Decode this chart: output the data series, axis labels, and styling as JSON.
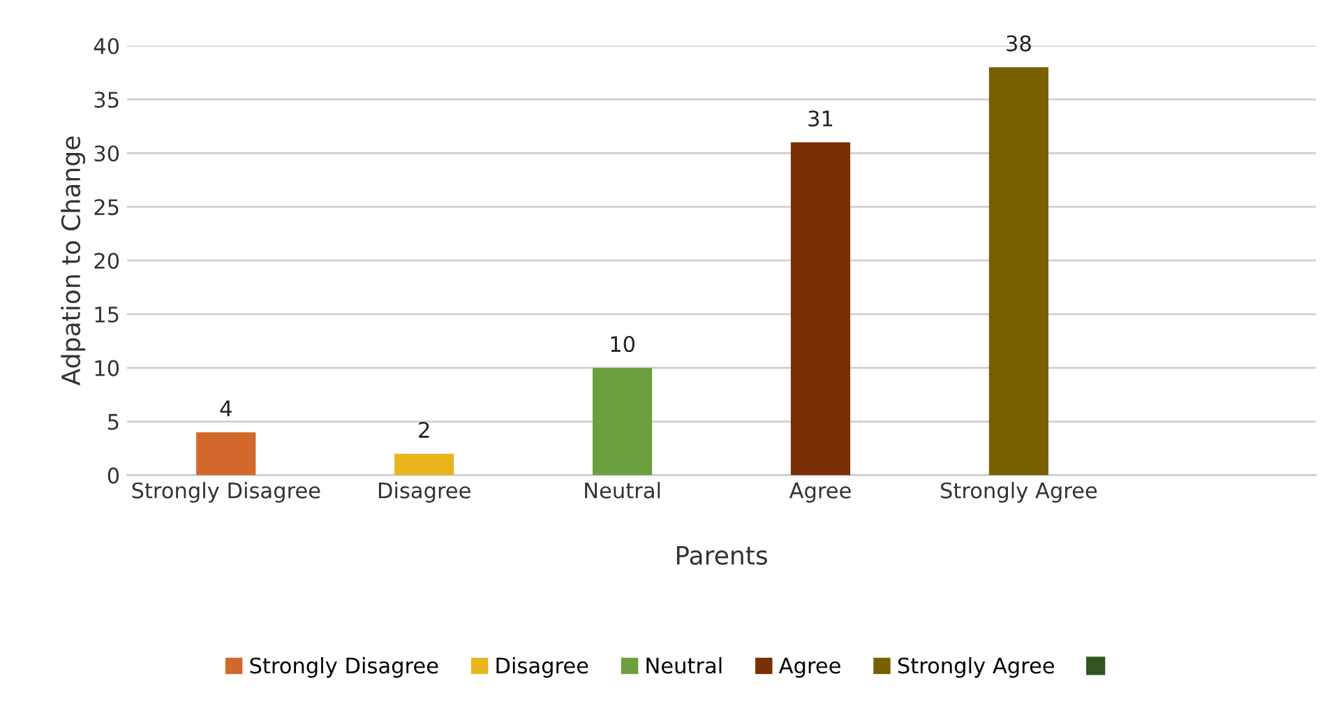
{
  "chart_data": {
    "type": "bar",
    "xlabel": "Parents",
    "ylabel": "Adpation to Change",
    "categories": [
      "Strongly Disagree",
      "Disagree",
      "Neutral",
      "Agree",
      "Strongly Agree",
      null
    ],
    "stacked": true,
    "series": [
      {
        "name": "Strongly Disagree",
        "color": "#d2682b",
        "values": [
          4,
          null,
          null,
          null,
          null,
          null
        ]
      },
      {
        "name": "Disagree",
        "color": "#e9b51c",
        "values": [
          null,
          2,
          null,
          null,
          null,
          null
        ]
      },
      {
        "name": "Neutral",
        "color": "#6c9f3e",
        "values": [
          null,
          null,
          10,
          null,
          null,
          null
        ]
      },
      {
        "name": "Agree",
        "color": "#7a2f04",
        "values": [
          null,
          null,
          null,
          31,
          null,
          null
        ]
      },
      {
        "name": "Strongly Agree",
        "color": "#7a5f00",
        "values": [
          null,
          null,
          null,
          null,
          38,
          null
        ]
      },
      {
        "color": "#2f5620",
        "values": [
          null,
          null,
          null,
          null,
          null,
          null
        ]
      }
    ],
    "ylim": [
      0,
      40
    ],
    "yticks": [
      0,
      5,
      10,
      15,
      20,
      25,
      30,
      35,
      40
    ],
    "grid": "y",
    "legend": "bottom",
    "data_labels": true
  }
}
